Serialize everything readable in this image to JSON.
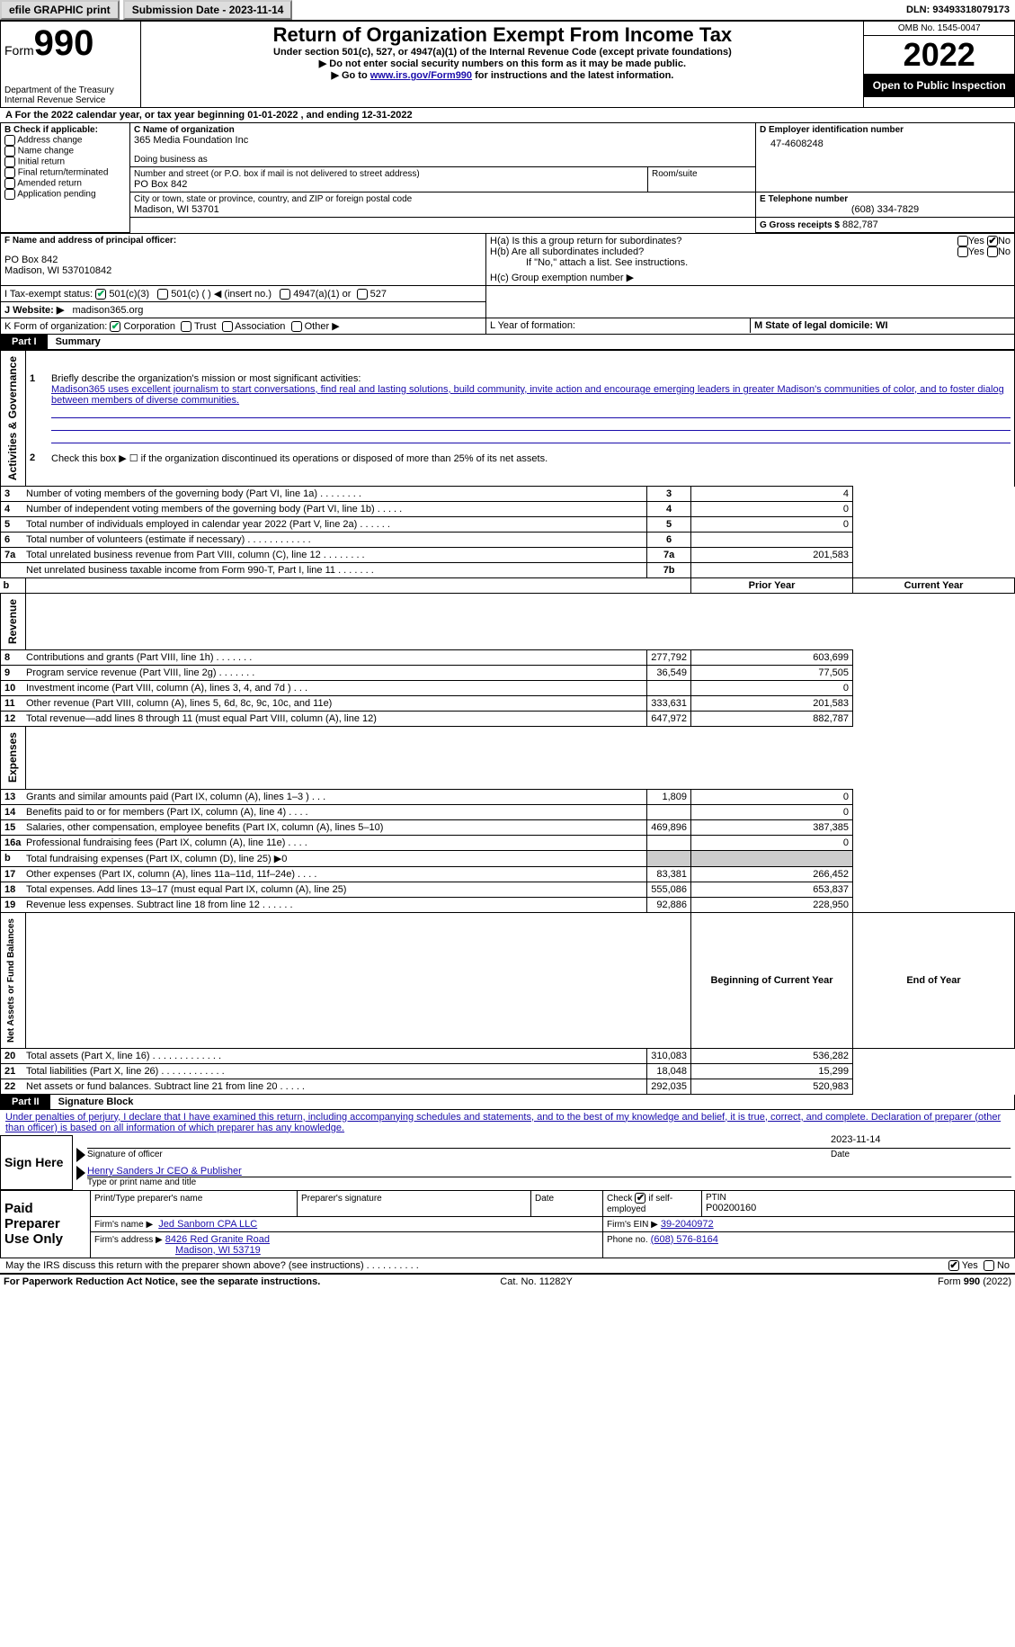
{
  "topbar": {
    "efile": "efile GRAPHIC print",
    "subdate_label": "Submission Date - ",
    "subdate": "2023-11-14",
    "dln": "DLN: 93493318079173"
  },
  "header": {
    "form_label": "Form",
    "form_num": "990",
    "dept": "Department of the Treasury\nInternal Revenue Service",
    "title": "Return of Organization Exempt From Income Tax",
    "subtitle": "Under section 501(c), 527, or 4947(a)(1) of the Internal Revenue Code (except private foundations)",
    "warn1": "▶ Do not enter social security numbers on this form as it may be made public.",
    "warn2_pre": "▶ Go to ",
    "warn2_link": "www.irs.gov/Form990",
    "warn2_post": " for instructions and the latest information.",
    "omb": "OMB No. 1545-0047",
    "year": "2022",
    "open": "Open to Public Inspection"
  },
  "line_a": "A For the 2022 calendar year, or tax year beginning 01-01-2022    , and ending 12-31-2022",
  "boxB": {
    "title": "B Check if applicable:",
    "items": [
      "Address change",
      "Name change",
      "Initial return",
      "Final return/terminated",
      "Amended return",
      "Application pending"
    ]
  },
  "boxC": {
    "label_name": "C Name of organization",
    "org": "365 Media Foundation Inc",
    "dba_label": "Doing business as",
    "addr_label": "Number and street (or P.O. box if mail is not delivered to street address)",
    "room_label": "Room/suite",
    "addr": "PO Box 842",
    "city_label": "City or town, state or province, country, and ZIP or foreign postal code",
    "city": "Madison, WI  53701"
  },
  "boxD": {
    "label": "D Employer identification number",
    "val": "47-4608248"
  },
  "boxE": {
    "label": "E Telephone number",
    "val": "(608) 334-7829"
  },
  "boxG": {
    "label": "G Gross receipts $",
    "val": "882,787"
  },
  "boxF": {
    "label": "F  Name and address of principal officer:",
    "line1": "PO Box 842",
    "line2": "Madison, WI  537010842"
  },
  "boxH": {
    "ha": "H(a)  Is this a group return for subordinates?",
    "hb": "H(b)  Are all subordinates included?",
    "hb_note": "If \"No,\" attach a list. See instructions.",
    "hc": "H(c)  Group exemption number ▶"
  },
  "boxI": {
    "label": "I   Tax-exempt status:",
    "c3": "501(c)(3)",
    "c": "501(c) (   ) ◀ (insert no.)",
    "a1": "4947(a)(1) or",
    "s527": "527"
  },
  "boxJ": {
    "label": "J   Website: ▶",
    "val": "madison365.org"
  },
  "boxK": {
    "label": "K Form of organization:",
    "corp": "Corporation",
    "trust": "Trust",
    "assoc": "Association",
    "other": "Other ▶"
  },
  "boxL": "L Year of formation:",
  "boxM": "M State of legal domicile: WI",
  "part1": {
    "label": "Part I",
    "title": "Summary",
    "vlabel_act": "Activities & Governance",
    "vlabel_rev": "Revenue",
    "vlabel_exp": "Expenses",
    "vlabel_net": "Net Assets or Fund Balances",
    "l1_label": "Briefly describe the organization's mission or most significant activities:",
    "l1_text": "Madison365 uses excellent journalism to start conversations, find real and lasting solutions, build community, invite action and encourage emerging leaders in greater Madison's communities of color, and to foster dialog between members of diverse communities.",
    "l2": "Check this box ▶ ☐  if the organization discontinued its operations or disposed of more than 25% of its net assets.",
    "rows_gov": [
      {
        "n": "3",
        "t": "Number of voting members of the governing body (Part VI, line 1a)   .    .    .    .    .    .    .    .",
        "box": "3",
        "v": "4"
      },
      {
        "n": "4",
        "t": "Number of independent voting members of the governing body (Part VI, line 1b)   .    .    .    .    .",
        "box": "4",
        "v": "0"
      },
      {
        "n": "5",
        "t": "Total number of individuals employed in calendar year 2022 (Part V, line 2a)   .    .    .    .    .    .",
        "box": "5",
        "v": "0"
      },
      {
        "n": "6",
        "t": "Total number of volunteers (estimate if necessary)    .    .    .    .    .    .    .    .    .    .    .    .",
        "box": "6",
        "v": ""
      },
      {
        "n": "7a",
        "t": "Total unrelated business revenue from Part VIII, column (C), line 12   .    .    .    .    .    .    .    .",
        "box": "7a",
        "v": "201,583"
      },
      {
        "n": "",
        "t": "Net unrelated business taxable income from Form 990-T, Part I, line 11   .    .    .    .    .    .    .",
        "box": "7b",
        "v": ""
      }
    ],
    "hdr_prior": "Prior Year",
    "hdr_curr": "Current Year",
    "rows_rev": [
      {
        "n": "8",
        "t": "Contributions and grants (Part VIII, line 1h)    .    .    .    .    .    .    .",
        "p": "277,792",
        "c": "603,699"
      },
      {
        "n": "9",
        "t": "Program service revenue (Part VIII, line 2g)    .    .    .    .    .    .    .",
        "p": "36,549",
        "c": "77,505"
      },
      {
        "n": "10",
        "t": "Investment income (Part VIII, column (A), lines 3, 4, and 7d )    .    .    .",
        "p": "",
        "c": "0"
      },
      {
        "n": "11",
        "t": "Other revenue (Part VIII, column (A), lines 5, 6d, 8c, 9c, 10c, and 11e)",
        "p": "333,631",
        "c": "201,583"
      },
      {
        "n": "12",
        "t": "Total revenue—add lines 8 through 11 (must equal Part VIII, column (A), line 12)",
        "p": "647,972",
        "c": "882,787"
      }
    ],
    "rows_exp": [
      {
        "n": "13",
        "t": "Grants and similar amounts paid (Part IX, column (A), lines 1–3 )   .    .    .",
        "p": "1,809",
        "c": "0"
      },
      {
        "n": "14",
        "t": "Benefits paid to or for members (Part IX, column (A), line 4)   .    .    .    .",
        "p": "",
        "c": "0"
      },
      {
        "n": "15",
        "t": "Salaries, other compensation, employee benefits (Part IX, column (A), lines 5–10)",
        "p": "469,896",
        "c": "387,385"
      },
      {
        "n": "16a",
        "t": "Professional fundraising fees (Part IX, column (A), line 11e)   .    .    .    .",
        "p": "",
        "c": "0"
      },
      {
        "n": "b",
        "t": "Total fundraising expenses (Part IX, column (D), line 25) ▶0",
        "p": "GREY",
        "c": "GREY"
      },
      {
        "n": "17",
        "t": "Other expenses (Part IX, column (A), lines 11a–11d, 11f–24e)   .    .    .    .",
        "p": "83,381",
        "c": "266,452"
      },
      {
        "n": "18",
        "t": "Total expenses. Add lines 13–17 (must equal Part IX, column (A), line 25)",
        "p": "555,086",
        "c": "653,837"
      },
      {
        "n": "19",
        "t": "Revenue less expenses. Subtract line 18 from line 12   .    .    .    .    .    .",
        "p": "92,886",
        "c": "228,950"
      }
    ],
    "hdr_beg": "Beginning of Current Year",
    "hdr_end": "End of Year",
    "rows_net": [
      {
        "n": "20",
        "t": "Total assets (Part X, line 16)   .    .    .    .    .    .    .    .    .    .    .    .    .",
        "p": "310,083",
        "c": "536,282"
      },
      {
        "n": "21",
        "t": "Total liabilities (Part X, line 26)   .    .    .    .    .    .    .    .    .    .    .    .",
        "p": "18,048",
        "c": "15,299"
      },
      {
        "n": "22",
        "t": "Net assets or fund balances. Subtract line 21 from line 20   .    .    .    .    .",
        "p": "292,035",
        "c": "520,983"
      }
    ]
  },
  "part2": {
    "label": "Part II",
    "title": "Signature Block",
    "decl": "Under penalties of perjury, I declare that I have examined this return, including accompanying schedules and statements, and to the best of my knowledge and belief, it is true, correct, and complete. Declaration of preparer (other than officer) is based on all information of which preparer has any knowledge.",
    "sign_here": "Sign Here",
    "sig_officer": "Signature of officer",
    "sig_date": "2023-11-14",
    "date_lbl": "Date",
    "name": "Henry Sanders Jr CEO & Publisher",
    "name_lbl": "Type or print name and title",
    "paid": "Paid Preparer Use Only",
    "prep_name_lbl": "Print/Type preparer's name",
    "prep_sig_lbl": "Preparer's signature",
    "prep_date_lbl": "Date",
    "check_lbl": "Check",
    "self_lbl": "if self-employed",
    "ptin_lbl": "PTIN",
    "ptin": "P00200160",
    "firm_name_lbl": "Firm's name    ▶",
    "firm_name": "Jed Sanborn CPA LLC",
    "firm_ein_lbl": "Firm's EIN ▶",
    "firm_ein": "39-2040972",
    "firm_addr_lbl": "Firm's address ▶",
    "firm_addr1": "8426 Red Granite Road",
    "firm_addr2": "Madison, WI  53719",
    "phone_lbl": "Phone no.",
    "phone": "(608) 576-8164",
    "discuss": "May the IRS discuss this return with the preparer shown above? (see instructions)    .    .    .    .    .    .    .    .    .    .",
    "yes": "Yes",
    "no": "No"
  },
  "footer": {
    "left": "For Paperwork Reduction Act Notice, see the separate instructions.",
    "mid": "Cat. No. 11282Y",
    "right": "Form 990 (2022)"
  }
}
